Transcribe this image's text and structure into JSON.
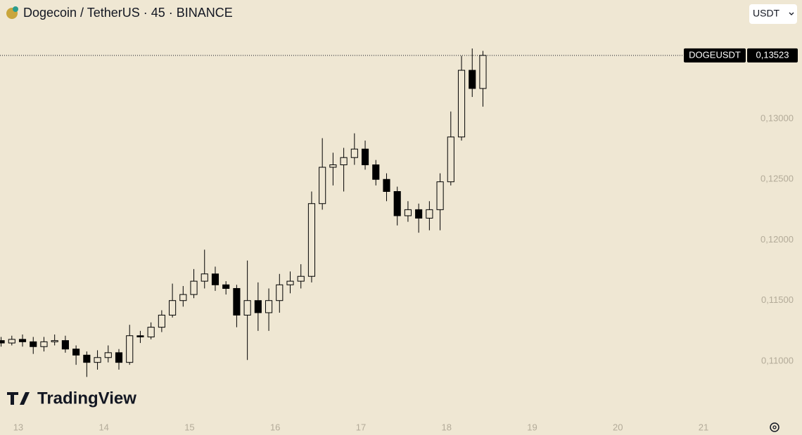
{
  "header": {
    "title": "Dogecoin / TetherUS · 45 · BINANCE",
    "currency": "USDT"
  },
  "branding": "TradingView",
  "chart_data": {
    "type": "candlestick",
    "x": [
      12.8,
      12.925,
      13.05,
      13.175,
      13.3,
      13.425,
      13.55,
      13.675,
      13.8,
      13.925,
      14.05,
      14.175,
      14.3,
      14.425,
      14.55,
      14.675,
      14.8,
      14.925,
      15.05,
      15.175,
      15.3,
      15.425,
      15.55,
      15.675,
      15.8,
      15.925,
      16.05,
      16.175,
      16.3,
      16.425,
      16.55,
      16.675,
      16.8,
      16.925,
      17.05,
      17.175,
      17.3,
      17.425,
      17.55,
      17.675,
      17.8,
      17.925,
      18.05,
      18.175,
      18.3,
      18.425
    ],
    "open": [
      0.1117,
      0.1115,
      0.1118,
      0.1116,
      0.1112,
      0.1116,
      0.1117,
      0.111,
      0.1105,
      0.1099,
      0.1103,
      0.1107,
      0.1099,
      0.1121,
      0.112,
      0.1128,
      0.1138,
      0.115,
      0.1155,
      0.1166,
      0.1172,
      0.1163,
      0.116,
      0.1138,
      0.115,
      0.114,
      0.115,
      0.1163,
      0.1166,
      0.117,
      0.123,
      0.126,
      0.1262,
      0.1268,
      0.1275,
      0.1262,
      0.125,
      0.124,
      0.122,
      0.1225,
      0.1218,
      0.1225,
      0.1248,
      0.1285,
      0.134,
      0.1325
    ],
    "high": [
      0.112,
      0.1121,
      0.1122,
      0.112,
      0.112,
      0.1122,
      0.1121,
      0.1113,
      0.1108,
      0.1109,
      0.1113,
      0.111,
      0.113,
      0.1125,
      0.1132,
      0.1142,
      0.1164,
      0.1162,
      0.1176,
      0.1192,
      0.1178,
      0.1166,
      0.1163,
      0.1183,
      0.1165,
      0.116,
      0.1172,
      0.1174,
      0.118,
      0.124,
      0.1284,
      0.1272,
      0.1276,
      0.1288,
      0.1282,
      0.1266,
      0.1255,
      0.1244,
      0.1232,
      0.123,
      0.1232,
      0.1255,
      0.1306,
      0.1352,
      0.1358,
      0.1356
    ],
    "low": [
      0.1112,
      0.1113,
      0.1112,
      0.1106,
      0.1108,
      0.1113,
      0.1107,
      0.1097,
      0.1087,
      0.1093,
      0.1099,
      0.1093,
      0.1097,
      0.1115,
      0.1118,
      0.1124,
      0.1136,
      0.1145,
      0.1152,
      0.116,
      0.1158,
      0.1155,
      0.1128,
      0.1101,
      0.1125,
      0.1125,
      0.114,
      0.1156,
      0.116,
      0.1165,
      0.1225,
      0.1245,
      0.124,
      0.1262,
      0.1258,
      0.1245,
      0.1232,
      0.1212,
      0.1215,
      0.1206,
      0.1208,
      0.1208,
      0.1245,
      0.1282,
      0.1318,
      0.131
    ],
    "close": [
      0.1115,
      0.1118,
      0.1116,
      0.1112,
      0.1116,
      0.1117,
      0.111,
      0.1105,
      0.1099,
      0.1103,
      0.1107,
      0.1099,
      0.1121,
      0.112,
      0.1128,
      0.1138,
      0.115,
      0.1155,
      0.1166,
      0.1172,
      0.1163,
      0.116,
      0.1138,
      0.115,
      0.114,
      0.115,
      0.1163,
      0.1166,
      0.117,
      0.123,
      0.126,
      0.1262,
      0.1268,
      0.1275,
      0.1262,
      0.125,
      0.124,
      0.122,
      0.1225,
      0.1218,
      0.1225,
      0.1248,
      0.1285,
      0.134,
      0.1325,
      0.13523
    ],
    "up_color": "#efe7d3",
    "down_color": "#000000",
    "edge_color": "#000000",
    "xlim": [
      12.787,
      22.15
    ],
    "xticks": [
      13,
      14,
      15,
      16,
      17,
      18,
      19,
      20,
      21
    ],
    "ylim": [
      0.1053,
      0.1398
    ],
    "yticks": [
      {
        "value": 0.11,
        "label": "0,11000"
      },
      {
        "value": 0.115,
        "label": "0,11500"
      },
      {
        "value": 0.12,
        "label": "0,12000"
      },
      {
        "value": 0.125,
        "label": "0,12500"
      },
      {
        "value": 0.13,
        "label": "0,13000"
      }
    ],
    "last_price": {
      "symbol": "DOGEUSDT",
      "value": 0.13523,
      "label": "0,13523"
    }
  }
}
